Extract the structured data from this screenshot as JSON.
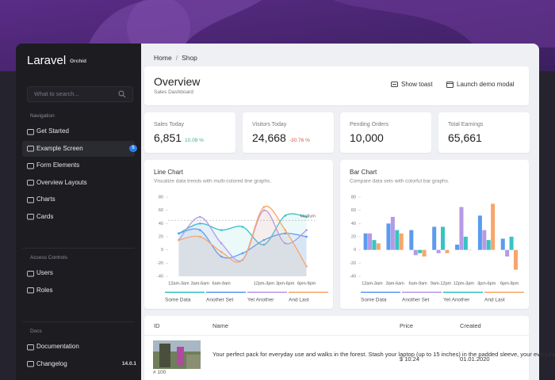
{
  "sidebar": {
    "brand": "Laravel",
    "brand_suffix": "Orchid",
    "search_placeholder": "What to search...",
    "sections": [
      {
        "title": "Navigation",
        "items": [
          {
            "label": "Get Started"
          },
          {
            "label": "Example Screen",
            "badge": 6,
            "active": true
          },
          {
            "label": "Form Elements"
          },
          {
            "label": "Overview Layouts"
          },
          {
            "label": "Charts"
          },
          {
            "label": "Cards"
          }
        ]
      },
      {
        "title": "Access Controls",
        "items": [
          {
            "label": "Users"
          },
          {
            "label": "Roles"
          }
        ]
      },
      {
        "title": "Docs",
        "items": [
          {
            "label": "Documentation"
          },
          {
            "label": "Changelog",
            "version": "14.0.1"
          }
        ]
      }
    ]
  },
  "breadcrumb": [
    "Home",
    "Shop"
  ],
  "header": {
    "title": "Overview",
    "subtitle": "Sales Dashboard",
    "actions": [
      "Show toast",
      "Launch demo modal"
    ]
  },
  "metrics": [
    {
      "title": "Sales Today",
      "value": "6,851",
      "change": "10.08 %"
    },
    {
      "title": "Visitors Today",
      "value": "24,668",
      "change": "-30.76 %"
    },
    {
      "title": "Pending Orders",
      "value": "10,000"
    },
    {
      "title": "Total Earnings",
      "value": "65,661"
    }
  ],
  "chart_data": [
    {
      "type": "line",
      "title": "Line Chart",
      "subtitle": "Visualize data trends with multi-colored line graphs.",
      "categories": [
        "12am-3am",
        "3am-6am",
        "6am-9am",
        null,
        "12pm-3pm",
        "3pm-6pm",
        "6pm-9pm"
      ],
      "series": [
        {
          "name": "Some Data",
          "color": "#38c3c4",
          "values": [
            25,
            40,
            30,
            35,
            8,
            52,
            50
          ]
        },
        {
          "name": "Another Set",
          "color": "#5b9bf0",
          "values": [
            25,
            30,
            -10,
            -5,
            15,
            25,
            20
          ]
        },
        {
          "name": "Yet Another",
          "color": "#b59ae6",
          "values": [
            15,
            50,
            10,
            -15,
            60,
            10,
            30
          ]
        },
        {
          "name": "And Last",
          "color": "#f7a66b",
          "values": [
            15,
            20,
            -3,
            -15,
            65,
            30,
            -25
          ]
        }
      ],
      "markers": [
        {
          "label": "Medium",
          "value": 45
        }
      ],
      "ylim": [
        -40,
        80
      ],
      "yticks": [
        80,
        60,
        40,
        20,
        0,
        -20,
        -40
      ]
    },
    {
      "type": "bar",
      "title": "Bar Chart",
      "subtitle": "Compare data sets with colorful bar graphs.",
      "categories": [
        "12am-3am",
        "3am-6am",
        "6am-9am",
        "9am-12pm",
        "12pm-3pm",
        "3pm-6pm",
        "6pm-9pm"
      ],
      "series": [
        {
          "name": "Some Data",
          "color": "#5b9bf0",
          "values": [
            25,
            40,
            30,
            35,
            8,
            52,
            17
          ]
        },
        {
          "name": "Another Set",
          "color": "#b59ae6",
          "values": [
            25,
            50,
            -8,
            -5,
            65,
            30,
            -10
          ]
        },
        {
          "name": "Yet Another",
          "color": "#38c3c4",
          "values": [
            15,
            30,
            -5,
            35,
            20,
            15,
            20
          ]
        },
        {
          "name": "And Last",
          "color": "#f7a66b",
          "values": [
            10,
            25,
            -10,
            -5,
            0,
            70,
            -30
          ]
        }
      ],
      "ylim": [
        -40,
        80
      ],
      "yticks": [
        80,
        60,
        40,
        20,
        0,
        -20,
        -40
      ]
    }
  ],
  "table": {
    "columns": [
      "ID",
      "Name",
      "Price",
      "Created"
    ],
    "rows": [
      [
        "# 100",
        "Your perfect pack for everyday use and walks in the forest. Stash your laptop (up to 15 inches) in the padded sleeve, your everyday",
        "$ 10.24",
        "01.01.2020"
      ]
    ]
  }
}
